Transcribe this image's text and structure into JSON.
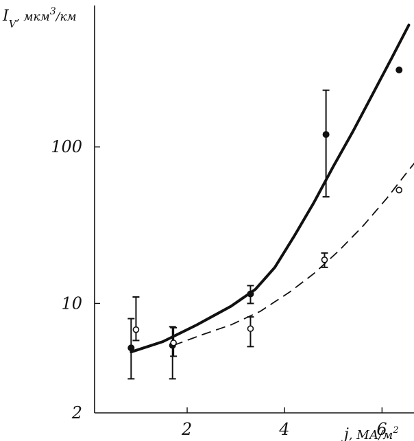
{
  "chart_data": {
    "type": "scatter",
    "title": "",
    "xlabel": "j, МА/м²",
    "ylabel": "I_V, мкм³/км",
    "xlabel_parts": {
      "main": "j",
      "units": ", МА/м",
      "sup": "2"
    },
    "ylabel_parts": {
      "main": "I",
      "sub": "V",
      "units": ", мкм",
      "sup": "3",
      "tail": "/км"
    },
    "x_scale": "linear",
    "y_scale": "log",
    "xlim": [
      0.1,
      6.6
    ],
    "ylim": [
      2,
      800
    ],
    "x_ticks": [
      2,
      4,
      6
    ],
    "y_ticks": [
      2,
      10,
      100
    ],
    "grid": false,
    "legend": "none",
    "series": [
      {
        "style": "solid-filled",
        "points": [
          {
            "x": 0.85,
            "y": 5.2,
            "yerr_low": 3.3,
            "yerr_high": 8.0
          },
          {
            "x": 1.7,
            "y": 5.4,
            "yerr_low": 3.3,
            "yerr_high": 7.1
          },
          {
            "x": 3.3,
            "y": 11.5,
            "yerr_low": 10.0,
            "yerr_high": 13.0
          },
          {
            "x": 4.85,
            "y": 120,
            "yerr_low": 48,
            "yerr_high": 230
          },
          {
            "x": 6.35,
            "y": 310
          }
        ],
        "curve": [
          [
            0.85,
            4.9
          ],
          [
            1.5,
            5.7
          ],
          [
            2.2,
            7.3
          ],
          [
            2.9,
            9.6
          ],
          [
            3.4,
            12.3
          ],
          [
            3.8,
            17
          ],
          [
            4.2,
            27
          ],
          [
            4.6,
            44
          ],
          [
            5.0,
            75
          ],
          [
            5.4,
            125
          ],
          [
            5.8,
            215
          ],
          [
            6.2,
            370
          ],
          [
            6.55,
            600
          ]
        ]
      },
      {
        "style": "dashed-open",
        "points": [
          {
            "x": 0.95,
            "y": 6.8,
            "yerr_low": 5.8,
            "yerr_high": 11.0
          },
          {
            "x": 1.72,
            "y": 5.6,
            "yerr_low": 4.6,
            "yerr_high": 7.0
          },
          {
            "x": 3.3,
            "y": 6.9,
            "yerr_low": 5.3,
            "yerr_high": 8.2
          },
          {
            "x": 4.82,
            "y": 19,
            "yerr_low": 17,
            "yerr_high": 21
          },
          {
            "x": 6.35,
            "y": 53
          }
        ],
        "curve": [
          [
            1.72,
            5.4
          ],
          [
            2.3,
            6.3
          ],
          [
            2.9,
            7.3
          ],
          [
            3.5,
            8.9
          ],
          [
            4.1,
            11.8
          ],
          [
            4.6,
            15.5
          ],
          [
            5.1,
            21.5
          ],
          [
            5.6,
            31
          ],
          [
            6.1,
            47
          ],
          [
            6.5,
            68
          ],
          [
            6.75,
            85
          ]
        ]
      }
    ]
  }
}
